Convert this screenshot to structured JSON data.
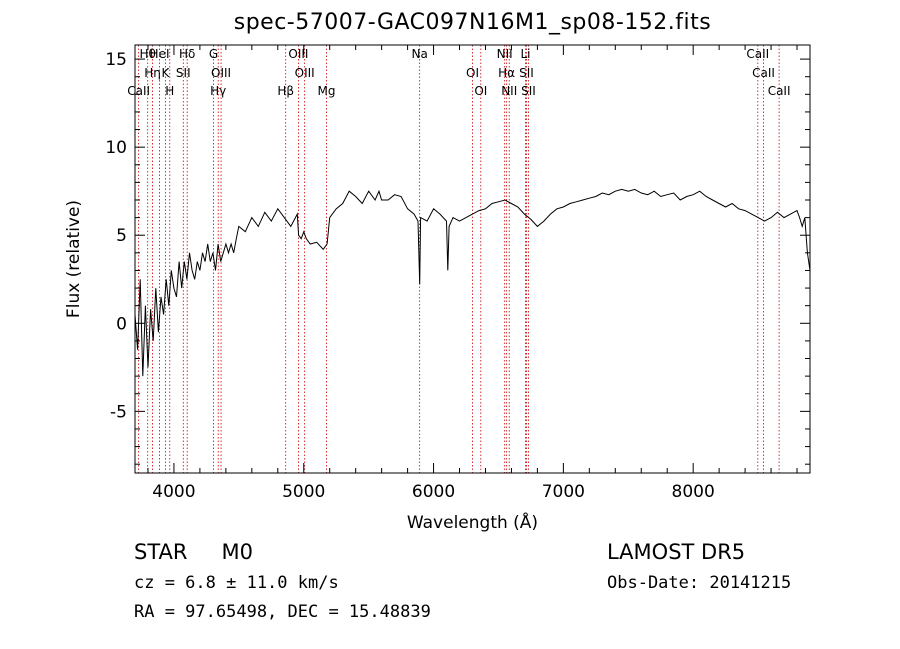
{
  "title": "spec-57007-GAC097N16M1_sp08-152.fits",
  "footer": {
    "object_class": "STAR",
    "subclass": "M0",
    "survey": "LAMOST DR5",
    "cz": "cz = 6.8 ± 11.0 km/s",
    "obs_date": "Obs-Date: 20141215",
    "radec": "RA =  97.65498, DEC =  15.48839"
  },
  "chart_data": {
    "type": "line",
    "title": "spec-57007-GAC097N16M1_sp08-152.fits",
    "xlabel": "Wavelength (Å)",
    "ylabel": "Flux (relative)",
    "xlim": [
      3700,
      8900
    ],
    "ylim": [
      -8.5,
      15.8
    ],
    "x_ticks": [
      4000,
      5000,
      6000,
      7000,
      8000
    ],
    "y_ticks": [
      -5,
      0,
      5,
      10,
      15
    ],
    "grid": false,
    "series": [
      {
        "color": "#000000",
        "x": [
          3700,
          3720,
          3740,
          3760,
          3780,
          3800,
          3820,
          3840,
          3860,
          3880,
          3900,
          3920,
          3940,
          3960,
          3980,
          4000,
          4020,
          4040,
          4060,
          4080,
          4100,
          4120,
          4140,
          4160,
          4180,
          4200,
          4220,
          4240,
          4260,
          4280,
          4300,
          4320,
          4340,
          4360,
          4380,
          4400,
          4420,
          4440,
          4460,
          4480,
          4500,
          4550,
          4600,
          4650,
          4700,
          4750,
          4800,
          4850,
          4900,
          4950,
          4960,
          4980,
          5000,
          5020,
          5050,
          5100,
          5150,
          5180,
          5200,
          5250,
          5300,
          5350,
          5400,
          5450,
          5500,
          5550,
          5580,
          5600,
          5650,
          5700,
          5750,
          5800,
          5850,
          5880,
          5893,
          5900,
          5950,
          6000,
          6050,
          6100,
          6110,
          6120,
          6150,
          6200,
          6250,
          6300,
          6350,
          6400,
          6450,
          6500,
          6550,
          6600,
          6650,
          6700,
          6750,
          6800,
          6850,
          6900,
          6950,
          7000,
          7050,
          7100,
          7150,
          7200,
          7250,
          7300,
          7350,
          7400,
          7450,
          7500,
          7550,
          7600,
          7650,
          7700,
          7750,
          7800,
          7850,
          7900,
          7950,
          8000,
          8050,
          8100,
          8150,
          8200,
          8250,
          8300,
          8350,
          8400,
          8450,
          8500,
          8550,
          8600,
          8650,
          8700,
          8750,
          8800,
          8820,
          8840,
          8860,
          8880,
          8900
        ],
        "y": [
          0.5,
          -1.5,
          2.5,
          -3.0,
          1.0,
          -2.5,
          0.8,
          -1.0,
          2.0,
          -0.5,
          1.5,
          0.5,
          2.5,
          1.0,
          3.0,
          2.0,
          1.5,
          3.5,
          2.0,
          3.5,
          2.5,
          4.0,
          3.0,
          2.5,
          3.5,
          3.0,
          4.0,
          3.5,
          4.5,
          3.5,
          4.0,
          3.0,
          4.5,
          3.5,
          4.0,
          4.5,
          4.0,
          4.5,
          4.0,
          4.8,
          5.5,
          5.2,
          6.0,
          5.5,
          6.3,
          5.8,
          6.5,
          6.0,
          5.5,
          6.2,
          5.0,
          4.8,
          5.2,
          4.8,
          4.5,
          4.6,
          4.2,
          4.5,
          6.0,
          6.5,
          6.8,
          7.5,
          7.2,
          6.8,
          7.5,
          7.0,
          7.5,
          7.0,
          7.0,
          7.3,
          7.2,
          6.5,
          6.2,
          5.8,
          2.2,
          6.0,
          5.8,
          6.5,
          6.2,
          5.8,
          3.0,
          5.5,
          6.0,
          5.8,
          6.0,
          6.2,
          6.4,
          6.5,
          6.8,
          6.9,
          7.0,
          6.8,
          6.6,
          6.2,
          5.9,
          5.5,
          5.8,
          6.2,
          6.5,
          6.6,
          6.8,
          6.9,
          7.0,
          7.1,
          7.2,
          7.4,
          7.3,
          7.5,
          7.6,
          7.5,
          7.6,
          7.4,
          7.3,
          7.5,
          7.2,
          7.3,
          7.4,
          7.0,
          7.2,
          7.3,
          7.5,
          7.2,
          7.0,
          6.8,
          6.6,
          6.8,
          6.5,
          6.4,
          6.2,
          6.0,
          5.8,
          6.0,
          6.3,
          6.0,
          6.2,
          6.4,
          6.0,
          5.5,
          6.0,
          4.0,
          3.0
        ]
      }
    ],
    "line_markers": [
      {
        "name": "Hθ",
        "x": 3798
      },
      {
        "name": "Hη",
        "x": 3835
      },
      {
        "name": "CaII",
        "x": 3728
      },
      {
        "name": "HeI",
        "x": 3889
      },
      {
        "name": "K",
        "x": 3934
      },
      {
        "name": "H",
        "x": 3968
      },
      {
        "name": "Hδ",
        "x": 4102
      },
      {
        "name": "SII",
        "x": 4072
      },
      {
        "name": "Hγ",
        "x": 4341
      },
      {
        "name": "G",
        "x": 4305
      },
      {
        "name": "OIII",
        "x": 4363
      },
      {
        "name": "Hβ",
        "x": 4861
      },
      {
        "name": "OIII",
        "x": 4959
      },
      {
        "name": "OIII",
        "x": 5007
      },
      {
        "name": "Mg",
        "x": 5175
      },
      {
        "name": "Na",
        "x": 5893
      },
      {
        "name": "OI",
        "x": 6300
      },
      {
        "name": "OI",
        "x": 6364
      },
      {
        "name": "NII",
        "x": 6548
      },
      {
        "name": "Hα",
        "x": 6563
      },
      {
        "name": "NII",
        "x": 6583
      },
      {
        "name": "Li",
        "x": 6708
      },
      {
        "name": "SII",
        "x": 6716
      },
      {
        "name": "SII",
        "x": 6731
      },
      {
        "name": "CaII",
        "x": 8498
      },
      {
        "name": "CaII",
        "x": 8542
      },
      {
        "name": "CaII",
        "x": 8662
      }
    ],
    "marker_color": "#cc0000"
  }
}
